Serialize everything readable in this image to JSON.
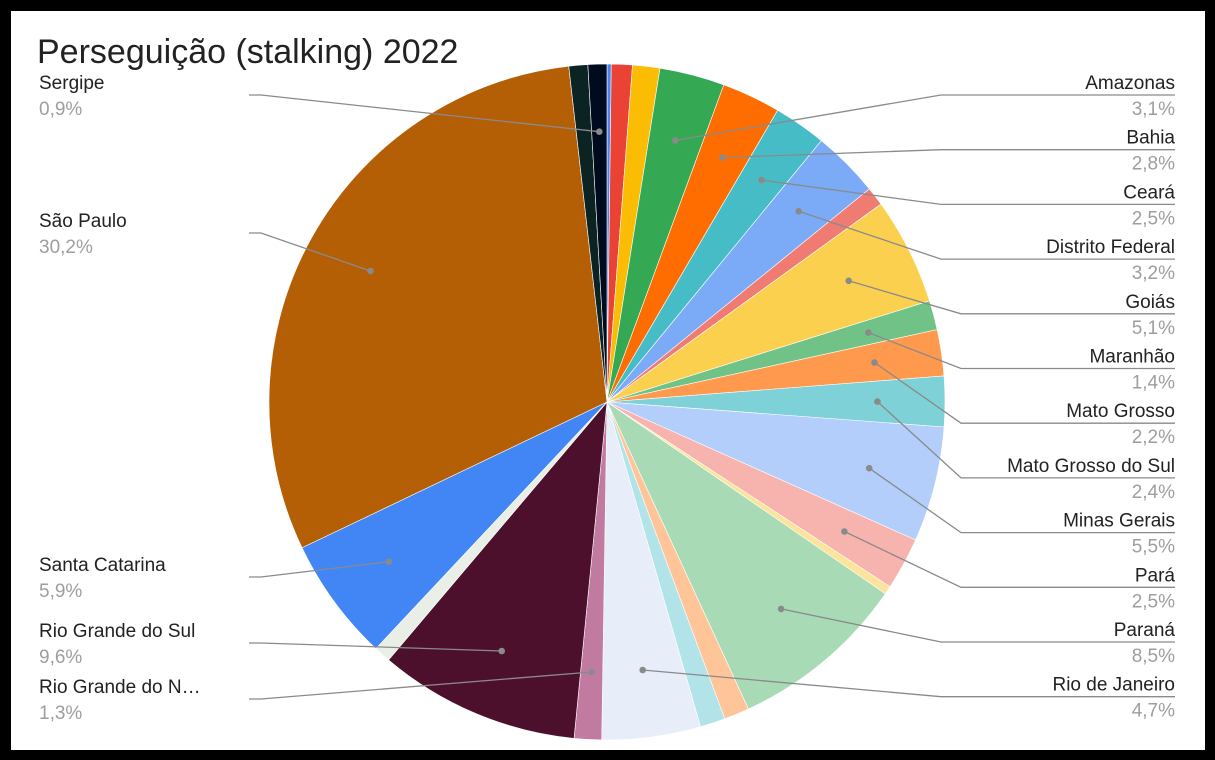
{
  "chart_data": {
    "type": "pie",
    "title": "Perseguição (stalking) 2022",
    "slices": [
      {
        "label": "",
        "value": 0.2,
        "color": "#4285f4",
        "pct_label": ""
      },
      {
        "label": "",
        "value": 1.0,
        "color": "#ea4335",
        "pct_label": ""
      },
      {
        "label": "",
        "value": 1.3,
        "color": "#fbbc04",
        "pct_label": ""
      },
      {
        "label": "Amazonas",
        "value": 3.1,
        "color": "#34a853",
        "pct_label": "3,1%"
      },
      {
        "label": "Bahia",
        "value": 2.8,
        "color": "#ff6d01",
        "pct_label": "2,8%"
      },
      {
        "label": "Ceará",
        "value": 2.5,
        "color": "#46bdc6",
        "pct_label": "2,5%"
      },
      {
        "label": "Distrito Federal",
        "value": 3.2,
        "color": "#7baaf7",
        "pct_label": "3,2%"
      },
      {
        "label": "",
        "value": 0.9,
        "color": "#f07b72",
        "pct_label": ""
      },
      {
        "label": "Goiás",
        "value": 5.1,
        "color": "#fcd04f",
        "pct_label": "5,1%"
      },
      {
        "label": "Maranhão",
        "value": 1.4,
        "color": "#71c287",
        "pct_label": "1,4%"
      },
      {
        "label": "Mato Grosso",
        "value": 2.2,
        "color": "#ff994d",
        "pct_label": "2,2%"
      },
      {
        "label": "Mato Grosso do Sul",
        "value": 2.4,
        "color": "#7ed1d7",
        "pct_label": "2,4%"
      },
      {
        "label": "Minas Gerais",
        "value": 5.5,
        "color": "#b3cefb",
        "pct_label": "5,5%"
      },
      {
        "label": "Pará",
        "value": 2.5,
        "color": "#f7b4ae",
        "pct_label": "2,5%"
      },
      {
        "label": "",
        "value": 0.4,
        "color": "#fde49b",
        "pct_label": ""
      },
      {
        "label": "Paraná",
        "value": 8.5,
        "color": "#a8dab5",
        "pct_label": "8,5%"
      },
      {
        "label": "",
        "value": 1.2,
        "color": "#ffc599",
        "pct_label": ""
      },
      {
        "label": "",
        "value": 1.2,
        "color": "#b2e3e8",
        "pct_label": ""
      },
      {
        "label": "Rio de Janeiro",
        "value": 4.7,
        "color": "#e8edfa",
        "pct_label": "4,7%"
      },
      {
        "label": "Rio Grande do N…",
        "value": 1.3,
        "color": "#c27ba0",
        "pct_label": "1,3%"
      },
      {
        "label": "Rio Grande do Sul",
        "value": 9.6,
        "color": "#4c0f2c",
        "pct_label": "9,6%"
      },
      {
        "label": "",
        "value": 0.8,
        "color": "#e9efe6",
        "pct_label": ""
      },
      {
        "label": "Santa Catarina",
        "value": 5.9,
        "color": "#4285f4",
        "pct_label": "5,9%"
      },
      {
        "label": "São Paulo",
        "value": 30.2,
        "color": "#b45f06",
        "pct_label": "30,2%"
      },
      {
        "label": "",
        "value": 0.9,
        "color": "#0b2323",
        "pct_label": ""
      },
      {
        "label": "Sergipe",
        "value": 0.9,
        "color": "#000c1e",
        "pct_label": "0,9%"
      }
    ],
    "start_angle_deg": 0,
    "direction": "clockwise",
    "legend": "none",
    "label_placement": "outside-with-leader-lines"
  }
}
